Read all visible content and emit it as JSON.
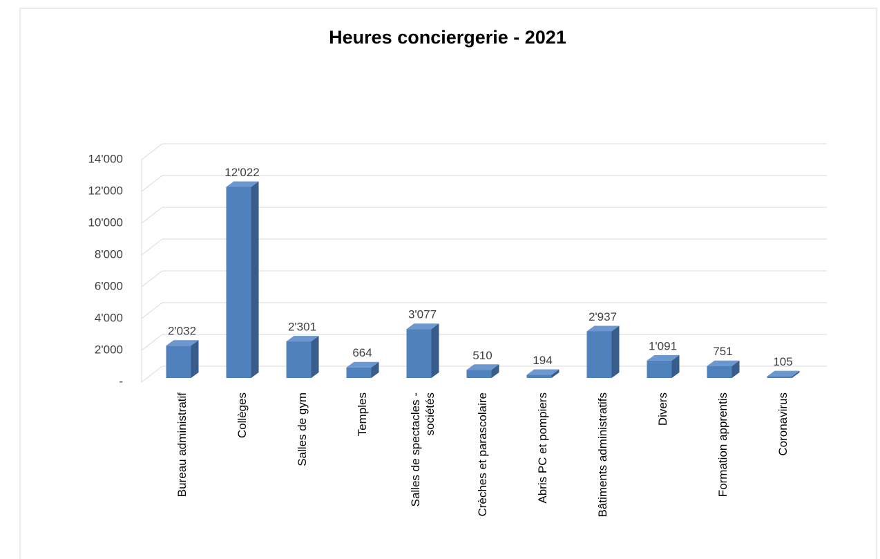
{
  "chart_data": {
    "type": "bar3d",
    "title": "Heures conciergerie - 2021",
    "categories": [
      "Bureau administratif",
      "Collèges",
      "Salles de gym",
      "Temples",
      "Salles de spectacles - sociétés",
      "Crèches et parascolaire",
      "Abris PC et pompiers",
      "Bâtiments administratifs",
      "Divers",
      "Formation apprentis",
      "Coronavirus"
    ],
    "values": [
      2032,
      12022,
      2301,
      664,
      3077,
      510,
      194,
      2937,
      1091,
      751,
      105
    ],
    "value_labels": [
      "2'032",
      "12'022",
      "2'301",
      "664",
      "3'077",
      "510",
      "194",
      "2'937",
      "1'091",
      "751",
      "105"
    ],
    "color": "#4f81bd",
    "ylim": [
      0,
      14000
    ],
    "yticks": [
      {
        "value": 0,
        "label": "-"
      },
      {
        "value": 2000,
        "label": "2'000"
      },
      {
        "value": 4000,
        "label": "4'000"
      },
      {
        "value": 6000,
        "label": "6'000"
      },
      {
        "value": 8000,
        "label": "8'000"
      },
      {
        "value": 10000,
        "label": "10'000"
      },
      {
        "value": 12000,
        "label": "12'000"
      },
      {
        "value": 14000,
        "label": "14'000"
      }
    ],
    "grid": true
  }
}
